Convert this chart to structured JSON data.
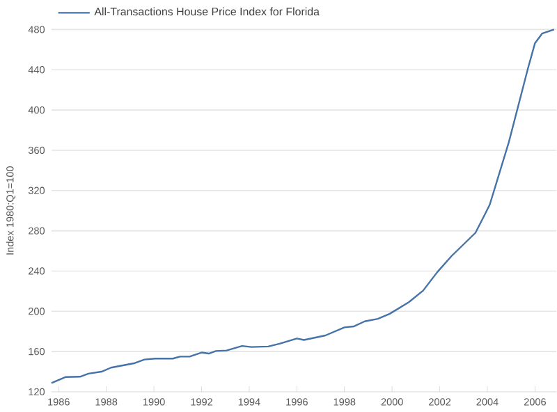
{
  "chart_data": {
    "type": "line",
    "ylabel": "Index 1980:Q1=100",
    "x": [
      1985.7,
      1986.3,
      1986.9,
      1987.25,
      1987.8,
      1988.2,
      1989.2,
      1989.6,
      1990.05,
      1990.8,
      1991.1,
      1991.5,
      1992.0,
      1992.3,
      1992.6,
      1993.05,
      1993.7,
      1994.1,
      1994.8,
      1995.3,
      1996.0,
      1996.3,
      1997.2,
      1998.0,
      1998.4,
      1998.85,
      1999.4,
      1999.9,
      2000.7,
      2001.3,
      2001.9,
      2002.5,
      2003.5,
      2003.9,
      2004.1,
      2004.45,
      2004.9,
      2005.3,
      2005.7,
      2006.0,
      2006.3,
      2006.8
    ],
    "series": [
      {
        "name": "All-Transactions House Price Index for Florida",
        "color": "#4572a7",
        "values": [
          128.7,
          134.7,
          135,
          138,
          140,
          144,
          148.5,
          152,
          153,
          153,
          155,
          155,
          159,
          158,
          160.5,
          161,
          165.5,
          164.5,
          165,
          168,
          173,
          171.5,
          176,
          184,
          185,
          190,
          192.5,
          197.5,
          209,
          220.5,
          239,
          255,
          278,
          296.5,
          306,
          333,
          368,
          404.5,
          441,
          466.5,
          476,
          480
        ]
      }
    ],
    "xlim": [
      1985.7,
      2006.9
    ],
    "ylim": [
      120,
      480
    ],
    "xticks": [
      1986,
      1988,
      1990,
      1992,
      1994,
      1996,
      1998,
      2000,
      2002,
      2004,
      2006
    ],
    "yticks": [
      120,
      160,
      200,
      240,
      280,
      320,
      360,
      400,
      440,
      480
    ],
    "grid": "y",
    "legend": "top left"
  }
}
